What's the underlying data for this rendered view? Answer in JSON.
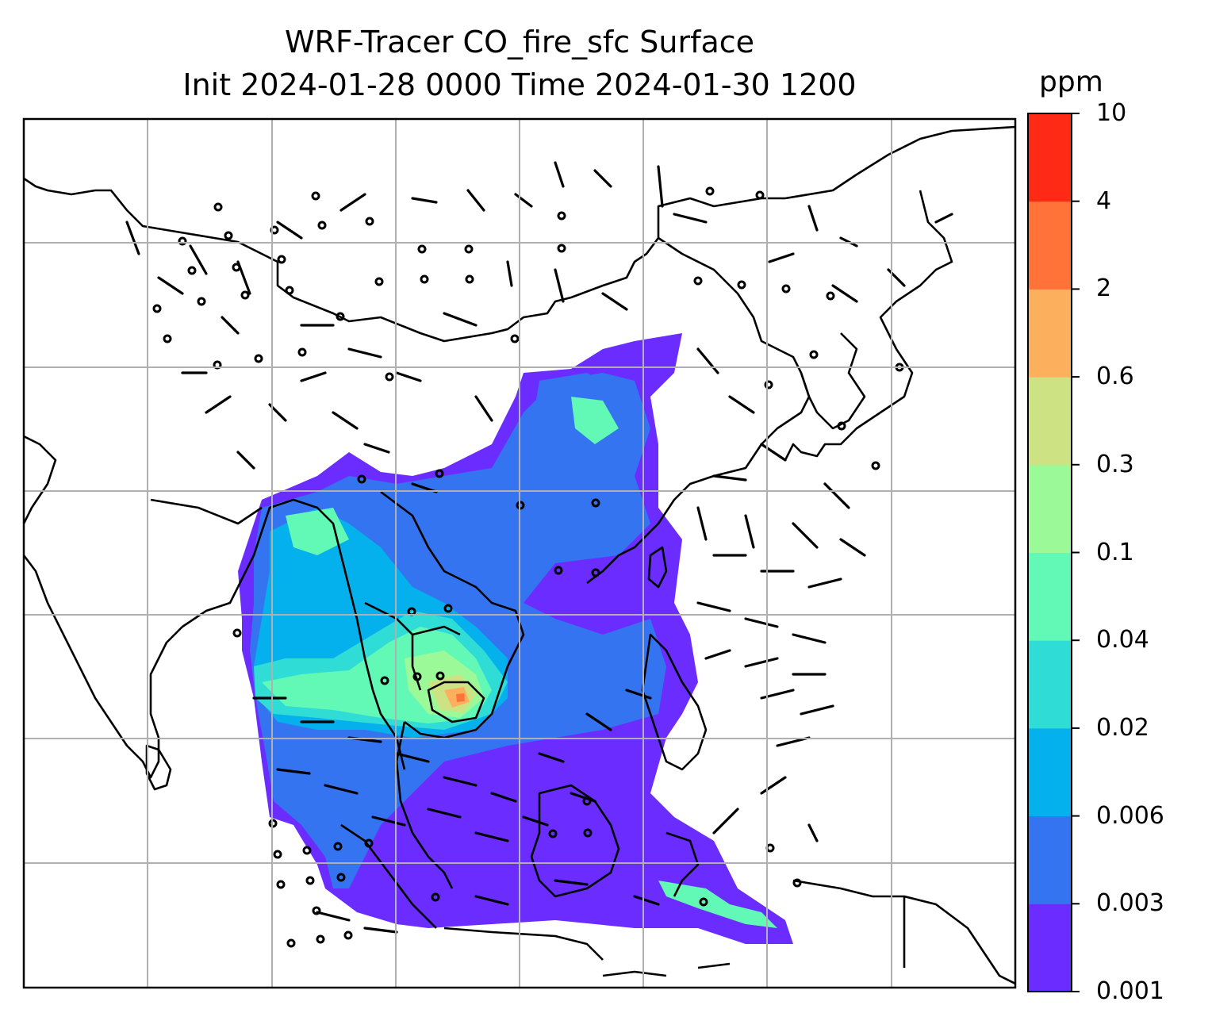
{
  "map": {
    "title_line1": "WRF-Tracer CO_fire_sfc Surface",
    "title_line2": "Init 2024-01-28 0000 Time 2024-01-30 1200",
    "variable": "CO_fire_sfc",
    "level": "Surface",
    "init_time": "2024-01-28 0000",
    "valid_time": "2024-01-30 1200",
    "gridlines": true,
    "wind_barbs": true
  },
  "colorbar": {
    "unit": "ppm",
    "levels": [
      "0.001",
      "0.003",
      "0.006",
      "0.02",
      "0.04",
      "0.1",
      "0.3",
      "0.6",
      "2",
      "4",
      "10"
    ],
    "colors": [
      "#6a2cff",
      "#3474f0",
      "#05b1ec",
      "#2fdcd6",
      "#62f8b6",
      "#9cf998",
      "#cde383",
      "#fcb05d",
      "#ff7339",
      "#ff2a16"
    ]
  }
}
